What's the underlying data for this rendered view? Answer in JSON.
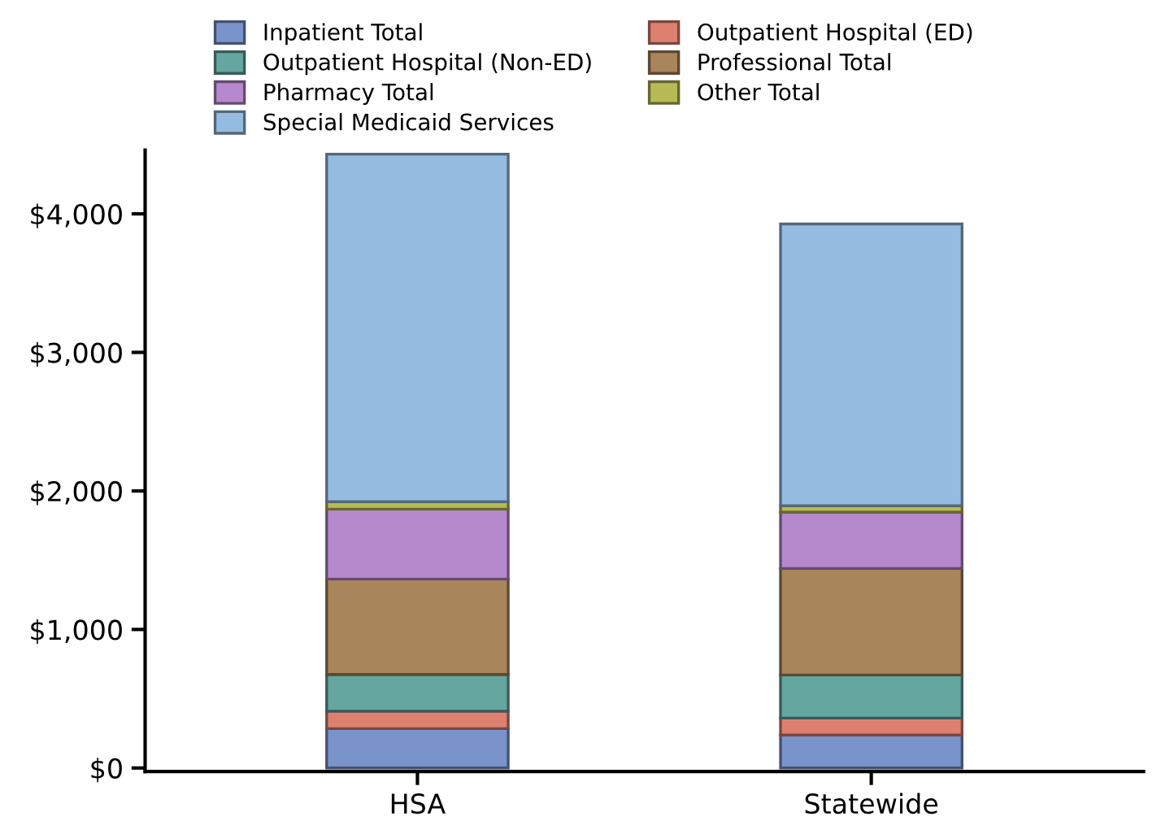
{
  "chart_data": {
    "type": "bar",
    "stacked": true,
    "categories": [
      "HSA",
      "Statewide"
    ],
    "series": [
      {
        "name": "Inpatient Total",
        "color": "#7b93cb",
        "values": [
          284,
          238
        ]
      },
      {
        "name": "Outpatient Hospital (ED)",
        "color": "#dd8070",
        "values": [
          126,
          122
        ]
      },
      {
        "name": "Outpatient Hospital (Non-ED)",
        "color": "#66a6a0",
        "values": [
          265,
          311
        ]
      },
      {
        "name": "Professional Total",
        "color": "#a8855a",
        "values": [
          689,
          769
        ]
      },
      {
        "name": "Pharmacy Total",
        "color": "#b689cc",
        "values": [
          504,
          407
        ]
      },
      {
        "name": "Other Total",
        "color": "#b8bb55",
        "values": [
          54,
          46
        ]
      },
      {
        "name": "Special Medicaid Services",
        "color": "#96bbe0",
        "values": [
          2509,
          2034
        ]
      }
    ],
    "ylim": [
      -25,
      4460
    ],
    "yticks": [
      {
        "value": 0,
        "label": "$0"
      },
      {
        "value": 1000,
        "label": "$1,000"
      },
      {
        "value": 2000,
        "label": "$2,000"
      },
      {
        "value": 3000,
        "label": "$3,000"
      },
      {
        "value": 4000,
        "label": "$4,000"
      }
    ],
    "grid": false,
    "legend": "top"
  }
}
